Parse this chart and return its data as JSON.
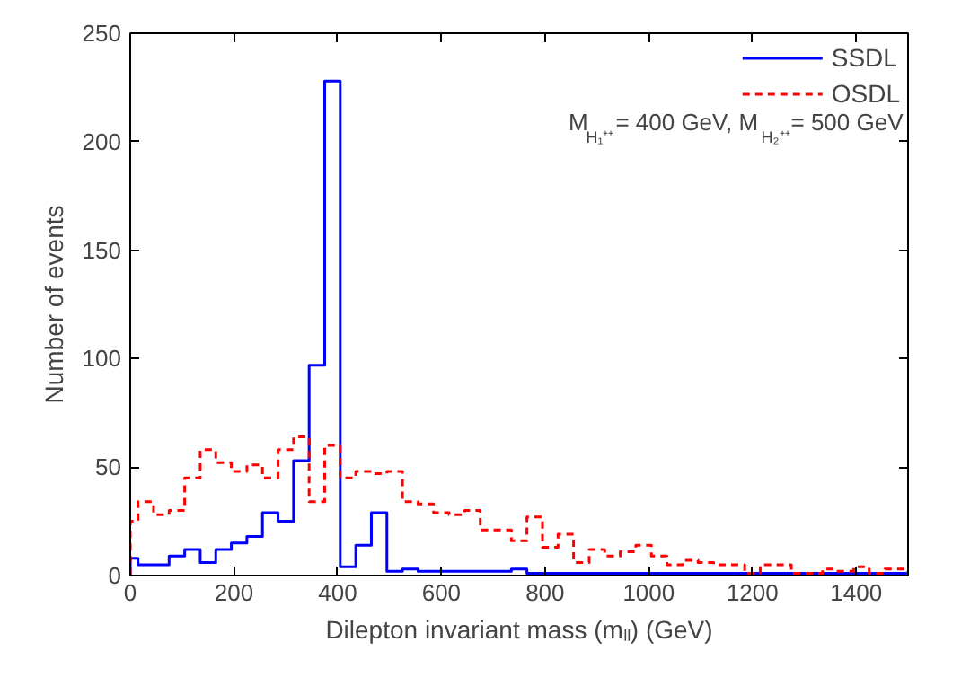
{
  "chart_data": {
    "type": "histogram",
    "xlabel": "Dilepton invariant mass (mₗₗ) (GeV)",
    "ylabel": "Number of events",
    "bins": [
      0,
      15,
      45,
      75,
      105,
      135,
      165,
      195,
      225,
      255,
      285,
      315,
      345,
      375,
      405,
      435,
      465,
      495,
      525,
      555,
      585,
      615,
      645,
      675,
      705,
      735,
      765,
      795,
      825,
      855,
      885,
      915,
      945,
      975,
      1005,
      1035,
      1065,
      1095,
      1125,
      1155,
      1185,
      1215,
      1245,
      1275,
      1305,
      1335,
      1365,
      1395,
      1425,
      1455,
      1485,
      1500
    ],
    "series": [
      {
        "name": "SSDL",
        "color": "#0000ff",
        "line_style": "solid",
        "values": [
          8,
          5,
          5,
          9,
          12,
          6,
          12,
          15,
          18,
          29,
          25,
          53,
          97,
          228,
          4,
          14,
          29,
          2,
          3,
          2,
          2,
          2,
          2,
          2,
          2,
          3,
          1,
          1,
          1,
          1,
          1,
          1,
          1,
          1,
          1,
          1,
          1,
          1,
          1,
          1,
          1,
          1,
          1,
          1,
          1,
          1,
          1,
          1,
          1,
          1,
          1
        ]
      },
      {
        "name": "OSDL",
        "color": "#ff0000",
        "line_style": "dashed",
        "values": [
          25,
          34,
          28,
          30,
          45,
          58,
          52,
          48,
          51,
          45,
          58,
          64,
          34,
          60,
          45,
          48,
          47,
          48,
          34,
          33,
          29,
          28,
          30,
          21,
          21,
          16,
          27,
          13,
          19,
          6,
          12,
          9,
          11,
          14,
          9,
          5,
          7,
          6,
          5,
          5,
          1,
          5,
          5,
          1,
          1,
          3,
          2,
          4,
          1,
          3,
          3
        ]
      }
    ],
    "annotations": [
      "M$_{H₁⁺⁺}$ = 400 GeV, M$_{H₂⁺⁺}$ = 500 GeV"
    ],
    "xlim": [
      0,
      1500
    ],
    "xticks": [
      0,
      200,
      400,
      600,
      800,
      1000,
      1200,
      1400
    ],
    "ylim": [
      0,
      250
    ],
    "yticks": [
      0,
      50,
      100,
      150,
      200,
      250
    ],
    "legend": "top right",
    "grid": false
  }
}
